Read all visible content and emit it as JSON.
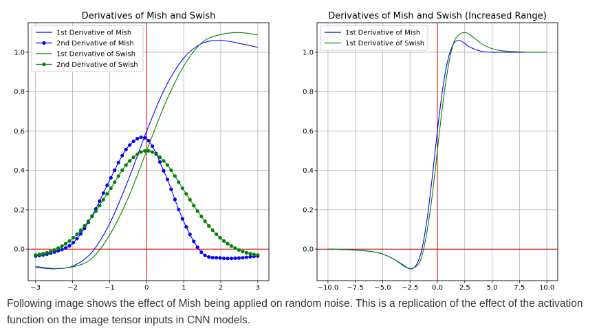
{
  "chart_data": [
    {
      "type": "line",
      "title": "Derivatives of Mish and Swish",
      "xlabel": "",
      "ylabel": "",
      "xlim": [
        -3.2,
        3.3
      ],
      "ylim": [
        -0.16,
        1.15
      ],
      "x_ticks": [
        -3,
        -2,
        -1,
        0,
        1,
        2,
        3
      ],
      "x_tick_labels": [
        "−3",
        "−2",
        "−1",
        "0",
        "1",
        "2",
        "3"
      ],
      "y_ticks": [
        0.0,
        0.2,
        0.4,
        0.6,
        0.8,
        1.0
      ],
      "y_tick_labels": [
        "0.0",
        "0.2",
        "0.4",
        "0.6",
        "0.8",
        "1.0"
      ],
      "grid": true,
      "legend": "top-left",
      "reference_lines": {
        "vertical_x": 0,
        "horizontal_y": 0,
        "color": "#ff0000"
      },
      "series": [
        {
          "name": "1st Derivative of Mish",
          "color": "#0000ff",
          "marker": "none",
          "x": [
            -3.0,
            -2.5,
            -2.0,
            -1.5,
            -1.0,
            -0.5,
            0.0,
            0.5,
            1.0,
            1.5,
            2.0,
            2.5,
            3.0
          ],
          "values": [
            -0.092,
            -0.1,
            -0.086,
            -0.02,
            0.13,
            0.35,
            0.6,
            0.82,
            0.97,
            1.045,
            1.06,
            1.045,
            1.025
          ]
        },
        {
          "name": "2nd Derivative of Mish",
          "color": "#0000ff",
          "marker": "dot",
          "x": [
            -3.0,
            -2.5,
            -2.0,
            -1.5,
            -1.0,
            -0.5,
            0.0,
            0.5,
            1.0,
            1.5,
            2.0,
            2.5,
            3.0
          ],
          "values": [
            -0.035,
            -0.015,
            0.03,
            0.16,
            0.35,
            0.52,
            0.56,
            0.38,
            0.14,
            -0.02,
            -0.045,
            -0.045,
            -0.035
          ]
        },
        {
          "name": "1st Derivative of Swish",
          "color": "#008000",
          "marker": "none",
          "x": [
            -3.0,
            -2.5,
            -2.0,
            -1.5,
            -1.0,
            -0.5,
            0.0,
            0.5,
            1.0,
            1.5,
            2.0,
            2.5,
            3.0
          ],
          "values": [
            -0.088,
            -0.098,
            -0.09,
            -0.05,
            0.072,
            0.26,
            0.5,
            0.74,
            0.93,
            1.05,
            1.09,
            1.1,
            1.088
          ]
        },
        {
          "name": "2nd Derivative of Swish",
          "color": "#008000",
          "marker": "dot",
          "x": [
            -3.0,
            -2.5,
            -2.0,
            -1.5,
            -1.0,
            -0.5,
            0.0,
            0.5,
            1.0,
            1.5,
            2.0,
            2.5,
            3.0
          ],
          "values": [
            -0.03,
            -0.005,
            0.055,
            0.16,
            0.3,
            0.44,
            0.5,
            0.44,
            0.3,
            0.16,
            0.055,
            -0.005,
            -0.03
          ]
        }
      ]
    },
    {
      "type": "line",
      "title": "Derivatives of Mish and Swish (Increased Range)",
      "xlabel": "",
      "ylabel": "",
      "xlim": [
        -11.0,
        11.0
      ],
      "ylim": [
        -0.16,
        1.15
      ],
      "x_ticks": [
        -10.0,
        -7.5,
        -5.0,
        -2.5,
        0.0,
        2.5,
        5.0,
        7.5,
        10.0
      ],
      "x_tick_labels": [
        "−10.0",
        "−7.5",
        "−5.0",
        "−2.5",
        "0.0",
        "2.5",
        "5.0",
        "7.5",
        "10.0"
      ],
      "y_ticks": [
        0.0,
        0.2,
        0.4,
        0.6,
        0.8,
        1.0
      ],
      "y_tick_labels": [
        "0.0",
        "0.2",
        "0.4",
        "0.6",
        "0.8",
        "1.0"
      ],
      "grid": true,
      "legend": "top-left",
      "reference_lines": {
        "vertical_x": 0,
        "horizontal_y": 0,
        "color": "#cc0000"
      },
      "series": [
        {
          "name": "1st Derivative of Mish",
          "color": "#0000ff",
          "marker": "none",
          "x": [
            -10,
            -8,
            -6,
            -5,
            -4,
            -3,
            -2.5,
            -2,
            -1.5,
            -1,
            -0.5,
            0,
            0.5,
            1,
            1.5,
            2,
            2.5,
            3,
            4,
            5,
            6,
            8,
            10
          ],
          "values": [
            0.0,
            -0.003,
            -0.012,
            -0.025,
            -0.05,
            -0.085,
            -0.1,
            -0.086,
            -0.02,
            0.13,
            0.35,
            0.6,
            0.82,
            0.97,
            1.045,
            1.06,
            1.045,
            1.025,
            1.005,
            1.0,
            1.0,
            1.0,
            1.0
          ]
        },
        {
          "name": "1st Derivative of Swish",
          "color": "#008000",
          "marker": "none",
          "x": [
            -10,
            -8,
            -6,
            -5,
            -4,
            -3,
            -2.5,
            -2,
            -1.5,
            -1,
            -0.5,
            0,
            0.5,
            1,
            1.5,
            2,
            2.5,
            3,
            4,
            5,
            6,
            8,
            10
          ],
          "values": [
            0.0,
            -0.003,
            -0.012,
            -0.025,
            -0.05,
            -0.088,
            -0.098,
            -0.09,
            -0.05,
            0.072,
            0.26,
            0.5,
            0.74,
            0.93,
            1.05,
            1.09,
            1.1,
            1.088,
            1.045,
            1.018,
            1.007,
            1.001,
            1.0
          ]
        }
      ]
    }
  ],
  "caption": {
    "line1": "Following image shows the effect of Mish being applied on random noise. This is a replication of the effect of the activation",
    "line2": "function on the image tensor inputs in CNN models."
  }
}
